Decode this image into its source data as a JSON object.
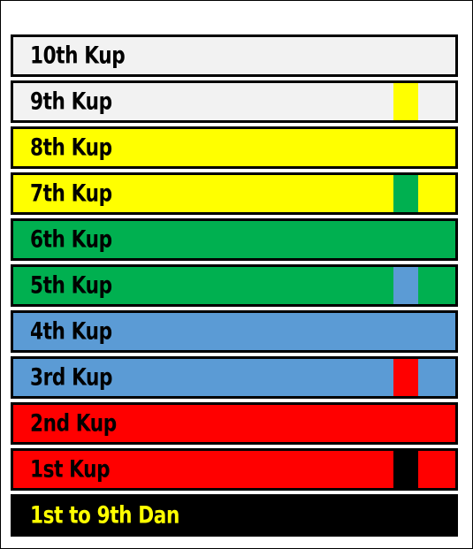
{
  "belts": [
    {
      "label": "10th Kup",
      "color": "#f2f2f2",
      "text_color": "#000000",
      "stripe": null
    },
    {
      "label": "9th Kup",
      "color": "#f2f2f2",
      "text_color": "#000000",
      "stripe": "#ffff00"
    },
    {
      "label": "8th Kup",
      "color": "#ffff00",
      "text_color": "#000000",
      "stripe": null
    },
    {
      "label": "7th Kup",
      "color": "#ffff00",
      "text_color": "#000000",
      "stripe": "#00b050"
    },
    {
      "label": "6th Kup",
      "color": "#00b050",
      "text_color": "#000000",
      "stripe": null
    },
    {
      "label": "5th Kup",
      "color": "#00b050",
      "text_color": "#000000",
      "stripe": "#5b9bd5"
    },
    {
      "label": "4th Kup",
      "color": "#5b9bd5",
      "text_color": "#000000",
      "stripe": null
    },
    {
      "label": "3rd Kup",
      "color": "#5b9bd5",
      "text_color": "#000000",
      "stripe": "#ff0000"
    },
    {
      "label": "2nd Kup",
      "color": "#ff0000",
      "text_color": "#000000",
      "stripe": null
    },
    {
      "label": "1st Kup",
      "color": "#ff0000",
      "text_color": "#000000",
      "stripe": "#000000"
    },
    {
      "label": "1st to 9th Dan",
      "color": "#000000",
      "text_color": "#ffff00",
      "stripe": null
    }
  ]
}
